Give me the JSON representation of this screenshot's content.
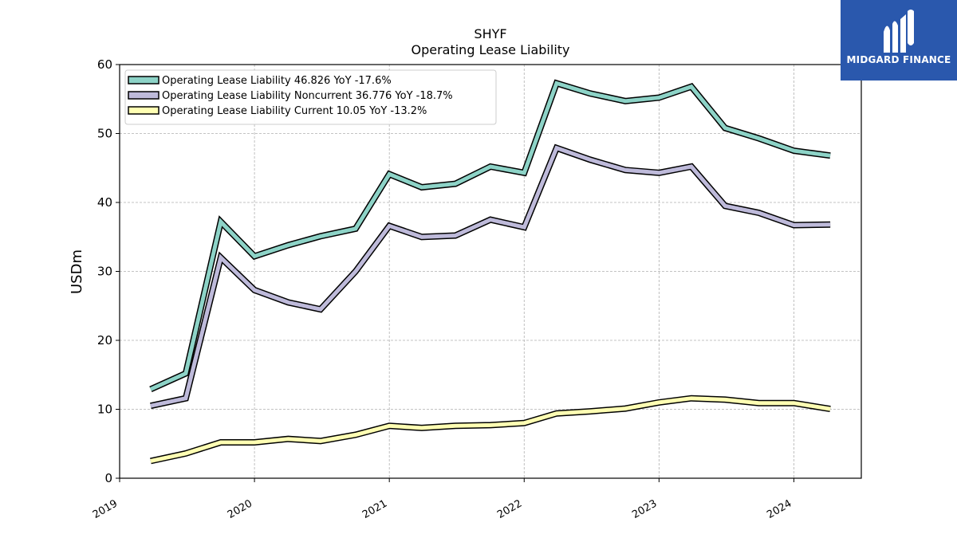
{
  "brand": {
    "name": "MIDGARD FINANCE"
  },
  "chart_data": {
    "type": "line",
    "title": "SHYF",
    "subtitle": "Operating Lease Liability",
    "ylabel": "USDm",
    "xlabel": "",
    "ylim": [
      0,
      60
    ],
    "xlim": [
      2019.0,
      2024.5
    ],
    "yticks": [
      0,
      10,
      20,
      30,
      40,
      50,
      60
    ],
    "xticks": [
      2019,
      2020,
      2021,
      2022,
      2023,
      2024
    ],
    "xtick_labels": [
      "2019",
      "2020",
      "2021",
      "2022",
      "2023",
      "2024"
    ],
    "grid": true,
    "legend_position": "top-left",
    "x": [
      2019.23,
      2019.49,
      2019.75,
      2020.0,
      2020.25,
      2020.49,
      2020.75,
      2021.0,
      2021.24,
      2021.49,
      2021.75,
      2022.0,
      2022.24,
      2022.49,
      2022.75,
      2023.0,
      2023.24,
      2023.49,
      2023.74,
      2024.0,
      2024.27
    ],
    "series": [
      {
        "name": "Operating Lease Liability",
        "legend": "Operating Lease Liability  46.826 YoY -17.6%",
        "color": "#8dd3c7",
        "values": [
          12.9,
          15.2,
          37.2,
          32.2,
          33.8,
          35.1,
          36.2,
          44.1,
          42.2,
          42.7,
          45.2,
          44.3,
          57.3,
          55.8,
          54.7,
          55.2,
          56.8,
          50.8,
          49.3,
          47.5,
          46.8
        ]
      },
      {
        "name": "Operating Lease Liability Noncurrent",
        "legend": "Operating Lease Liability Noncurrent  36.776 YoY -18.7%",
        "color": "#bebada",
        "values": [
          10.5,
          11.6,
          32.0,
          27.3,
          25.5,
          24.5,
          30.0,
          36.6,
          35.0,
          35.2,
          37.5,
          36.4,
          47.9,
          46.2,
          44.7,
          44.3,
          45.2,
          39.5,
          38.5,
          36.7,
          36.8
        ]
      },
      {
        "name": "Operating Lease Liability Current",
        "legend": "Operating Lease Liability Current  10.05 YoY -13.2%",
        "color": "#ffffb3",
        "values": [
          2.5,
          3.6,
          5.2,
          5.2,
          5.7,
          5.4,
          6.3,
          7.6,
          7.3,
          7.6,
          7.7,
          8.0,
          9.4,
          9.7,
          10.1,
          11.0,
          11.6,
          11.4,
          10.9,
          10.9,
          10.05
        ]
      }
    ]
  }
}
